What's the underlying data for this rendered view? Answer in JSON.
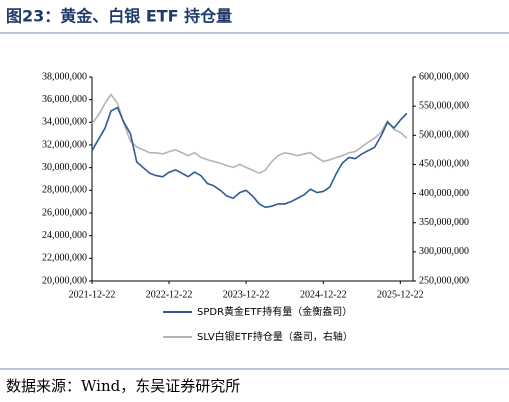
{
  "chart_data": {
    "type": "line",
    "title": "图23：黄金、白银 ETF 持仓量",
    "source": "数据来源：Wind，东吴证券研究所",
    "x": [
      "2021-12-22",
      "2022-01-22",
      "2022-02-22",
      "2022-03-22",
      "2022-04-22",
      "2022-05-22",
      "2022-06-22",
      "2022-07-22",
      "2022-08-22",
      "2022-09-22",
      "2022-10-22",
      "2022-11-22",
      "2022-12-22",
      "2023-01-22",
      "2023-02-22",
      "2023-03-22",
      "2023-04-22",
      "2023-05-22",
      "2023-06-22",
      "2023-07-22",
      "2023-08-22",
      "2023-09-22",
      "2023-10-22",
      "2023-11-22",
      "2023-12-22",
      "2024-01-22",
      "2024-02-22",
      "2024-03-22",
      "2024-04-22",
      "2024-05-22",
      "2024-06-22",
      "2024-07-22",
      "2024-08-22",
      "2024-09-22",
      "2024-10-22",
      "2024-11-22",
      "2024-12-22",
      "2025-01-22",
      "2025-02-22",
      "2025-03-22",
      "2025-04-22",
      "2025-05-22",
      "2025-06-22",
      "2025-07-22",
      "2025-08-22",
      "2025-09-22",
      "2025-10-22",
      "2025-11-22",
      "2025-12-22",
      "2026-01-22"
    ],
    "xlim": [
      "2021-12-22",
      "2026-02-20"
    ],
    "xticks": [
      "2021-12-22",
      "2022-12-22",
      "2023-12-22",
      "2024-12-22",
      "2025-12-22"
    ],
    "ylim": [
      20000000,
      38000000
    ],
    "yticks": [
      {
        "value": 20000000,
        "label": "20,000,000"
      },
      {
        "value": 22000000,
        "label": "22,000,000"
      },
      {
        "value": 24000000,
        "label": "24,000,000"
      },
      {
        "value": 26000000,
        "label": "26,000,000"
      },
      {
        "value": 28000000,
        "label": "28,000,000"
      },
      {
        "value": 30000000,
        "label": "30,000,000"
      },
      {
        "value": 32000000,
        "label": "32,000,000"
      },
      {
        "value": 34000000,
        "label": "34,000,000"
      },
      {
        "value": 36000000,
        "label": "36,000,000"
      },
      {
        "value": 38000000,
        "label": "38,000,000"
      }
    ],
    "y2lim": [
      250000000,
      600000000
    ],
    "y2ticks": [
      {
        "value": 250000000,
        "label": "250,000,000"
      },
      {
        "value": 300000000,
        "label": "300,000,000"
      },
      {
        "value": 350000000,
        "label": "350,000,000"
      },
      {
        "value": 400000000,
        "label": "400,000,000"
      },
      {
        "value": 450000000,
        "label": "450,000,000"
      },
      {
        "value": 500000000,
        "label": "500,000,000"
      },
      {
        "value": 550000000,
        "label": "550,000,000"
      },
      {
        "value": 600000000,
        "label": "600,000,000"
      }
    ],
    "series": [
      {
        "name": "SPDR黄金ETF持有量（金衡盎司）",
        "color": "#2e5a95",
        "values": [
          31500000,
          32500000,
          33500000,
          35000000,
          35300000,
          34000000,
          33000000,
          30500000,
          30000000,
          29500000,
          29300000,
          29200000,
          29600000,
          29800000,
          29500000,
          29200000,
          29600000,
          29300000,
          28600000,
          28400000,
          28000000,
          27500000,
          27300000,
          27800000,
          28000000,
          27500000,
          26800000,
          26500000,
          26600000,
          26800000,
          26800000,
          27000000,
          27300000,
          27600000,
          28100000,
          27800000,
          27900000,
          28300000,
          29500000,
          30400000,
          30900000,
          30800000,
          31200000,
          31500000,
          31800000,
          32800000,
          34000000,
          33500000,
          34200000,
          34800000
        ]
      },
      {
        "name": "SLV白银ETF持仓量（盎司，右轴）",
        "color": "#b4b4b4",
        "axis": "y2",
        "values": [
          520000000,
          535000000,
          555000000,
          570000000,
          555000000,
          520000000,
          490000000,
          480000000,
          475000000,
          470000000,
          470000000,
          468000000,
          472000000,
          475000000,
          470000000,
          465000000,
          470000000,
          462000000,
          458000000,
          455000000,
          452000000,
          448000000,
          445000000,
          450000000,
          445000000,
          440000000,
          435000000,
          440000000,
          455000000,
          465000000,
          470000000,
          468000000,
          465000000,
          468000000,
          470000000,
          462000000,
          455000000,
          458000000,
          462000000,
          465000000,
          470000000,
          472000000,
          480000000,
          488000000,
          495000000,
          505000000,
          525000000,
          510000000,
          505000000,
          495000000
        ]
      }
    ]
  }
}
